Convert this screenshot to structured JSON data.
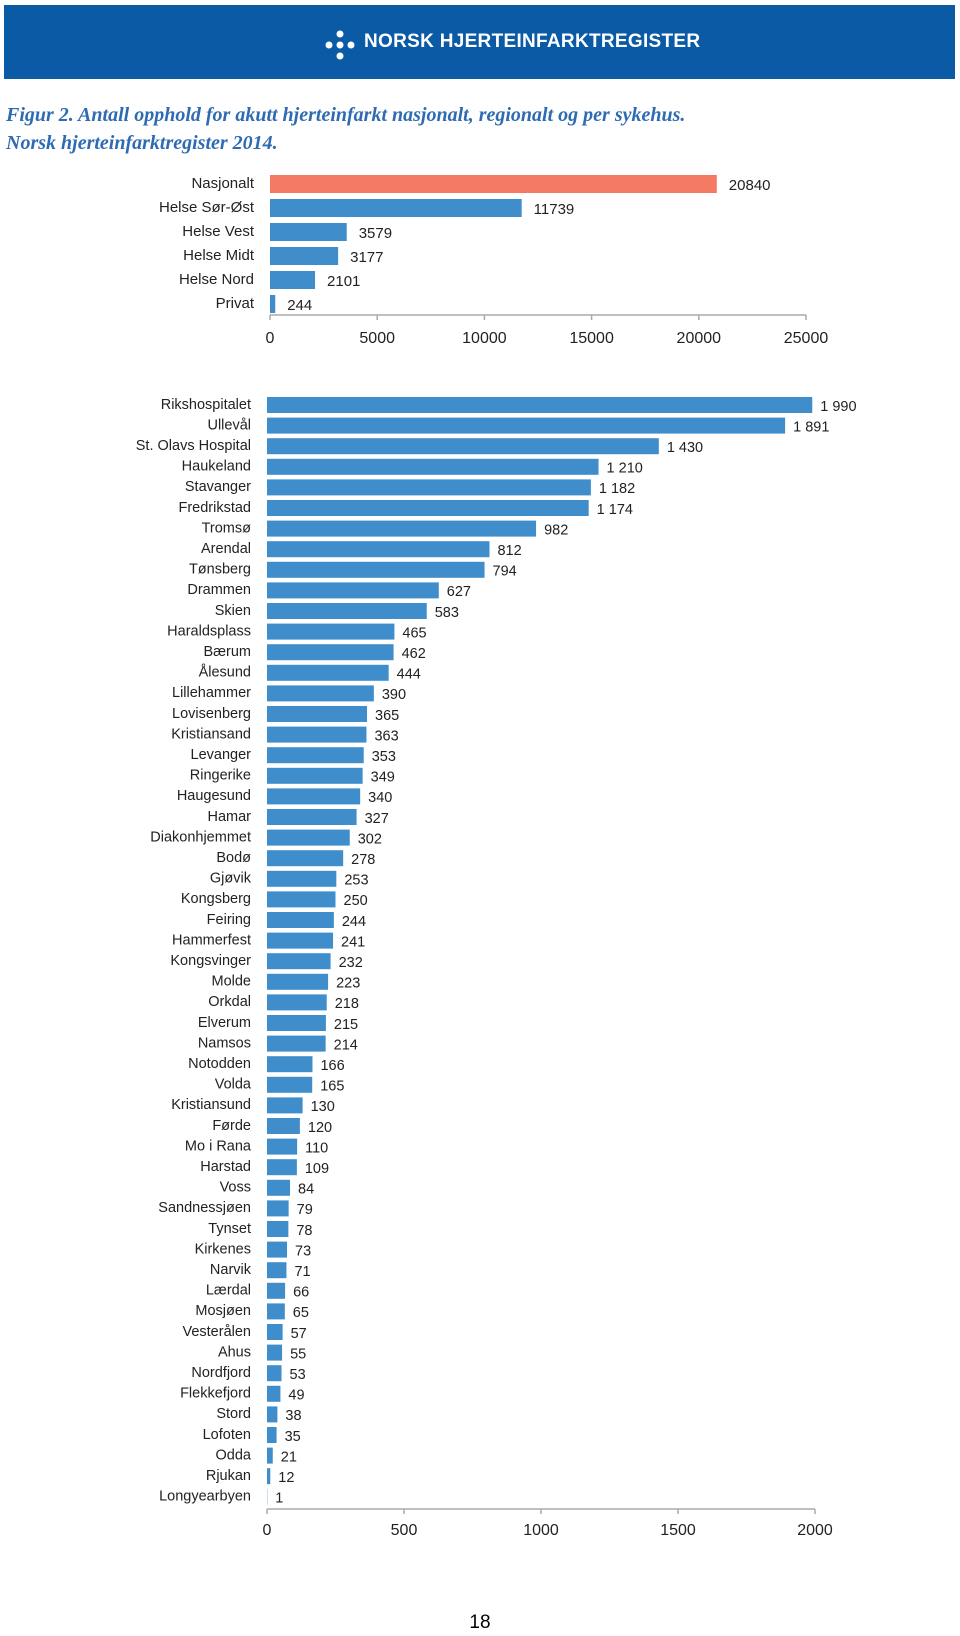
{
  "header": {
    "logo_text": "NORSK HJERTEINFARKTREGISTER"
  },
  "caption_lines": [
    "Figur 2. Antall opphold for akutt hjerteinfarkt nasjonalt, regionalt og per sykehus.",
    "Norsk hjerteinfarktregister 2014."
  ],
  "chart_data": [
    {
      "type": "barh",
      "categories": [
        "Nasjonalt",
        "Helse Sør-Øst",
        "Helse Vest",
        "Helse Midt",
        "Helse Nord",
        "Privat"
      ],
      "values": [
        20840,
        11739,
        3579,
        3177,
        2101,
        244
      ],
      "colors": [
        "#f47a64",
        "#3f8ecb",
        "#3f8ecb",
        "#3f8ecb",
        "#3f8ecb",
        "#3f8ecb"
      ],
      "xlim": [
        0,
        25000
      ],
      "xticks": [
        0,
        5000,
        10000,
        15000,
        20000,
        25000
      ]
    },
    {
      "type": "barh",
      "categories": [
        "Rikshospitalet",
        "Ullevål",
        "St. Olavs Hospital",
        "Haukeland",
        "Stavanger",
        "Fredrikstad",
        "Tromsø",
        "Arendal",
        "Tønsberg",
        "Drammen",
        "Skien",
        "Haraldsplass",
        "Bærum",
        "Ålesund",
        "Lillehammer",
        "Lovisenberg",
        "Kristiansand",
        "Levanger",
        "Ringerike",
        "Haugesund",
        "Hamar",
        "Diakonhjemmet",
        "Bodø",
        "Gjøvik",
        "Kongsberg",
        "Feiring",
        "Hammerfest",
        "Kongsvinger",
        "Molde",
        "Orkdal",
        "Elverum",
        "Namsos",
        "Notodden",
        "Volda",
        "Kristiansund",
        "Førde",
        "Mo i Rana",
        "Harstad",
        "Voss",
        "Sandnessjøen",
        "Tynset",
        "Kirkenes",
        "Narvik",
        "Lærdal",
        "Mosjøen",
        "Vesterålen",
        "Ahus",
        "Nordfjord",
        "Flekkefjord",
        "Stord",
        "Lofoten",
        "Odda",
        "Rjukan",
        "Longyearbyen"
      ],
      "values": [
        1990,
        1891,
        1430,
        1210,
        1182,
        1174,
        982,
        812,
        794,
        627,
        583,
        465,
        462,
        444,
        390,
        365,
        363,
        353,
        349,
        340,
        327,
        302,
        278,
        253,
        250,
        244,
        241,
        232,
        223,
        218,
        215,
        214,
        166,
        165,
        130,
        120,
        110,
        109,
        84,
        79,
        78,
        73,
        71,
        66,
        65,
        57,
        55,
        53,
        49,
        38,
        35,
        21,
        12,
        1
      ],
      "value_labels": [
        "1 990",
        "1 891",
        "1 430",
        "1 210",
        "1 182",
        "1 174",
        "982",
        "812",
        "794",
        "627",
        "583",
        "465",
        "462",
        "444",
        "390",
        "365",
        "363",
        "353",
        "349",
        "340",
        "327",
        "302",
        "278",
        "253",
        "250",
        "244",
        "241",
        "232",
        "223",
        "218",
        "215",
        "214",
        "166",
        "165",
        "130",
        "120",
        "110",
        "109",
        "84",
        "79",
        "78",
        "73",
        "71",
        "66",
        "65",
        "57",
        "55",
        "53",
        "49",
        "38",
        "35",
        "21",
        "12",
        "1"
      ],
      "color": "#3f8ecb",
      "xlim": [
        0,
        2000
      ],
      "xticks": [
        0,
        500,
        1000,
        1500,
        2000
      ]
    }
  ],
  "page_number": "18"
}
